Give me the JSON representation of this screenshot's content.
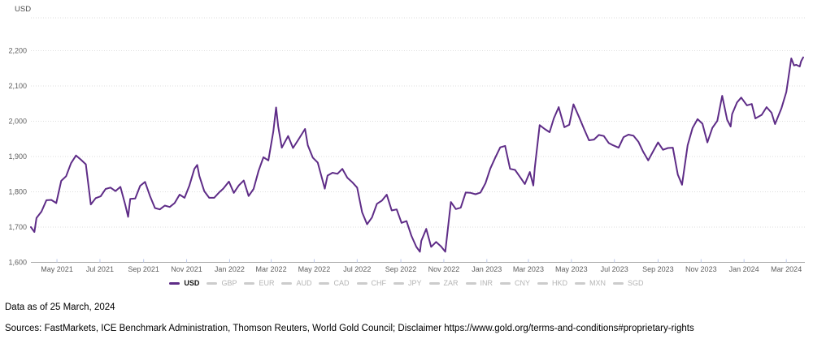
{
  "chart": {
    "axis_title": "USD"
  },
  "footer": {
    "data_as_of": "Data as of 25 March, 2024",
    "sources": "Sources: FastMarkets, ICE Benchmark Administration, Thomson Reuters, World Gold Council; Disclaimer https://www.gold.org/terms-and-conditions#proprietary-rights"
  },
  "colors": {
    "line": "#5e2c87",
    "grid": "#dedede",
    "axis_line": "#ababab",
    "tick_mark": "#bcc8ea",
    "tick_label": "#5e5e5e",
    "legend_active_dash": "#5e2c87",
    "legend_inactive_dash": "#cccccc",
    "legend_active_text": "#111111",
    "legend_inactive_text": "#b4b4b4",
    "footer_text": "#000000"
  },
  "legend": {
    "items": [
      {
        "label": "USD",
        "active": true
      },
      {
        "label": "GBP",
        "active": false
      },
      {
        "label": "EUR",
        "active": false
      },
      {
        "label": "AUD",
        "active": false
      },
      {
        "label": "CAD",
        "active": false
      },
      {
        "label": "CHF",
        "active": false
      },
      {
        "label": "JPY",
        "active": false
      },
      {
        "label": "ZAR",
        "active": false
      },
      {
        "label": "INR",
        "active": false
      },
      {
        "label": "CNY",
        "active": false
      },
      {
        "label": "HKD",
        "active": false
      },
      {
        "label": "MXN",
        "active": false
      },
      {
        "label": "SGD",
        "active": false
      }
    ]
  },
  "chart_data": {
    "type": "line",
    "ylabel": "USD",
    "grid": true,
    "legend_position": "bottom",
    "x_range": [
      "2021-03-25",
      "2024-03-25"
    ],
    "ylim": [
      1600,
      2293
    ],
    "y_ticks": [
      {
        "value": 1600,
        "label": "1,600"
      },
      {
        "value": 1700,
        "label": "1,700"
      },
      {
        "value": 1800,
        "label": "1,800"
      },
      {
        "value": 1900,
        "label": "1,900"
      },
      {
        "value": 2000,
        "label": "2,000"
      },
      {
        "value": 2100,
        "label": "2,100"
      },
      {
        "value": 2200,
        "label": "2,200"
      }
    ],
    "x_ticks": [
      {
        "date": "2021-05-01",
        "label": "May 2021"
      },
      {
        "date": "2021-07-01",
        "label": "Jul 2021"
      },
      {
        "date": "2021-09-01",
        "label": "Sep 2021"
      },
      {
        "date": "2021-11-01",
        "label": "Nov 2021"
      },
      {
        "date": "2022-01-01",
        "label": "Jan 2022"
      },
      {
        "date": "2022-03-01",
        "label": "Mar 2022"
      },
      {
        "date": "2022-05-01",
        "label": "May 2022"
      },
      {
        "date": "2022-07-01",
        "label": "Jul 2022"
      },
      {
        "date": "2022-09-01",
        "label": "Sep 2022"
      },
      {
        "date": "2022-11-01",
        "label": "Nov 2022"
      },
      {
        "date": "2023-01-01",
        "label": "Jan 2023"
      },
      {
        "date": "2023-03-01",
        "label": "Mar 2023"
      },
      {
        "date": "2023-05-01",
        "label": "May 2023"
      },
      {
        "date": "2023-07-01",
        "label": "Jul 2023"
      },
      {
        "date": "2023-09-01",
        "label": "Sep 2023"
      },
      {
        "date": "2023-11-01",
        "label": "Nov 2023"
      },
      {
        "date": "2024-01-01",
        "label": "Jan 2024"
      },
      {
        "date": "2024-03-01",
        "label": "Mar 2024"
      }
    ],
    "series": [
      {
        "name": "USD",
        "color": "#5e2c87",
        "points": [
          [
            "2021-03-25",
            1700
          ],
          [
            "2021-03-30",
            1686
          ],
          [
            "2021-04-02",
            1726
          ],
          [
            "2021-04-09",
            1744
          ],
          [
            "2021-04-16",
            1776
          ],
          [
            "2021-04-23",
            1777
          ],
          [
            "2021-04-30",
            1768
          ],
          [
            "2021-05-07",
            1831
          ],
          [
            "2021-05-14",
            1844
          ],
          [
            "2021-05-21",
            1881
          ],
          [
            "2021-05-28",
            1903
          ],
          [
            "2021-06-04",
            1891
          ],
          [
            "2021-06-11",
            1878
          ],
          [
            "2021-06-18",
            1764
          ],
          [
            "2021-06-25",
            1782
          ],
          [
            "2021-07-02",
            1787
          ],
          [
            "2021-07-09",
            1808
          ],
          [
            "2021-07-16",
            1812
          ],
          [
            "2021-07-23",
            1802
          ],
          [
            "2021-07-30",
            1814
          ],
          [
            "2021-08-06",
            1763
          ],
          [
            "2021-08-10",
            1729
          ],
          [
            "2021-08-13",
            1780
          ],
          [
            "2021-08-20",
            1781
          ],
          [
            "2021-08-27",
            1817
          ],
          [
            "2021-09-03",
            1828
          ],
          [
            "2021-09-10",
            1788
          ],
          [
            "2021-09-17",
            1754
          ],
          [
            "2021-09-24",
            1750
          ],
          [
            "2021-10-01",
            1761
          ],
          [
            "2021-10-08",
            1757
          ],
          [
            "2021-10-15",
            1768
          ],
          [
            "2021-10-22",
            1792
          ],
          [
            "2021-10-29",
            1783
          ],
          [
            "2021-11-05",
            1818
          ],
          [
            "2021-11-12",
            1865
          ],
          [
            "2021-11-16",
            1876
          ],
          [
            "2021-11-19",
            1845
          ],
          [
            "2021-11-26",
            1802
          ],
          [
            "2021-12-03",
            1783
          ],
          [
            "2021-12-10",
            1783
          ],
          [
            "2021-12-17",
            1798
          ],
          [
            "2021-12-23",
            1809
          ],
          [
            "2021-12-31",
            1829
          ],
          [
            "2022-01-07",
            1797
          ],
          [
            "2022-01-14",
            1818
          ],
          [
            "2022-01-21",
            1832
          ],
          [
            "2022-01-28",
            1788
          ],
          [
            "2022-02-04",
            1808
          ],
          [
            "2022-02-11",
            1859
          ],
          [
            "2022-02-18",
            1898
          ],
          [
            "2022-02-25",
            1889
          ],
          [
            "2022-03-04",
            1971
          ],
          [
            "2022-03-08",
            2039
          ],
          [
            "2022-03-11",
            1985
          ],
          [
            "2022-03-16",
            1925
          ],
          [
            "2022-03-25",
            1958
          ],
          [
            "2022-04-01",
            1924
          ],
          [
            "2022-04-08",
            1946
          ],
          [
            "2022-04-18",
            1978
          ],
          [
            "2022-04-22",
            1932
          ],
          [
            "2022-04-29",
            1897
          ],
          [
            "2022-05-06",
            1883
          ],
          [
            "2022-05-16",
            1809
          ],
          [
            "2022-05-20",
            1846
          ],
          [
            "2022-05-27",
            1854
          ],
          [
            "2022-06-03",
            1851
          ],
          [
            "2022-06-10",
            1865
          ],
          [
            "2022-06-17",
            1840
          ],
          [
            "2022-06-24",
            1827
          ],
          [
            "2022-07-01",
            1812
          ],
          [
            "2022-07-08",
            1742
          ],
          [
            "2022-07-15",
            1708
          ],
          [
            "2022-07-22",
            1727
          ],
          [
            "2022-07-29",
            1766
          ],
          [
            "2022-08-05",
            1775
          ],
          [
            "2022-08-12",
            1792
          ],
          [
            "2022-08-19",
            1747
          ],
          [
            "2022-08-26",
            1750
          ],
          [
            "2022-09-02",
            1712
          ],
          [
            "2022-09-09",
            1717
          ],
          [
            "2022-09-16",
            1675
          ],
          [
            "2022-09-23",
            1644
          ],
          [
            "2022-09-28",
            1630
          ],
          [
            "2022-09-30",
            1661
          ],
          [
            "2022-10-07",
            1695
          ],
          [
            "2022-10-14",
            1644
          ],
          [
            "2022-10-21",
            1658
          ],
          [
            "2022-10-28",
            1645
          ],
          [
            "2022-11-03",
            1630
          ],
          [
            "2022-11-11",
            1771
          ],
          [
            "2022-11-18",
            1751
          ],
          [
            "2022-11-25",
            1755
          ],
          [
            "2022-12-02",
            1798
          ],
          [
            "2022-12-09",
            1797
          ],
          [
            "2022-12-16",
            1793
          ],
          [
            "2022-12-23",
            1798
          ],
          [
            "2022-12-30",
            1824
          ],
          [
            "2023-01-06",
            1866
          ],
          [
            "2023-01-13",
            1897
          ],
          [
            "2023-01-20",
            1926
          ],
          [
            "2023-01-27",
            1930
          ],
          [
            "2023-02-03",
            1865
          ],
          [
            "2023-02-10",
            1862
          ],
          [
            "2023-02-17",
            1842
          ],
          [
            "2023-02-24",
            1822
          ],
          [
            "2023-03-03",
            1856
          ],
          [
            "2023-03-08",
            1818
          ],
          [
            "2023-03-10",
            1868
          ],
          [
            "2023-03-17",
            1989
          ],
          [
            "2023-03-24",
            1978
          ],
          [
            "2023-03-31",
            1969
          ],
          [
            "2023-04-06",
            2008
          ],
          [
            "2023-04-13",
            2040
          ],
          [
            "2023-04-21",
            1983
          ],
          [
            "2023-04-28",
            1990
          ],
          [
            "2023-05-04",
            2048
          ],
          [
            "2023-05-12",
            2011
          ],
          [
            "2023-05-19",
            1978
          ],
          [
            "2023-05-26",
            1946
          ],
          [
            "2023-06-02",
            1948
          ],
          [
            "2023-06-09",
            1961
          ],
          [
            "2023-06-16",
            1958
          ],
          [
            "2023-06-23",
            1938
          ],
          [
            "2023-06-29",
            1932
          ],
          [
            "2023-07-07",
            1925
          ],
          [
            "2023-07-14",
            1955
          ],
          [
            "2023-07-21",
            1962
          ],
          [
            "2023-07-28",
            1959
          ],
          [
            "2023-08-04",
            1942
          ],
          [
            "2023-08-11",
            1913
          ],
          [
            "2023-08-18",
            1889
          ],
          [
            "2023-08-25",
            1915
          ],
          [
            "2023-09-01",
            1940
          ],
          [
            "2023-09-08",
            1919
          ],
          [
            "2023-09-15",
            1924
          ],
          [
            "2023-09-22",
            1925
          ],
          [
            "2023-09-29",
            1849
          ],
          [
            "2023-10-05",
            1820
          ],
          [
            "2023-10-13",
            1932
          ],
          [
            "2023-10-20",
            1981
          ],
          [
            "2023-10-27",
            2006
          ],
          [
            "2023-11-03",
            1993
          ],
          [
            "2023-11-10",
            1940
          ],
          [
            "2023-11-17",
            1981
          ],
          [
            "2023-11-24",
            2001
          ],
          [
            "2023-12-01",
            2072
          ],
          [
            "2023-12-08",
            2004
          ],
          [
            "2023-12-13",
            1985
          ],
          [
            "2023-12-15",
            2020
          ],
          [
            "2023-12-22",
            2053
          ],
          [
            "2023-12-28",
            2067
          ],
          [
            "2024-01-05",
            2045
          ],
          [
            "2024-01-12",
            2049
          ],
          [
            "2024-01-17",
            2008
          ],
          [
            "2024-01-26",
            2018
          ],
          [
            "2024-02-02",
            2040
          ],
          [
            "2024-02-09",
            2024
          ],
          [
            "2024-02-14",
            1992
          ],
          [
            "2024-02-23",
            2036
          ],
          [
            "2024-03-01",
            2083
          ],
          [
            "2024-03-08",
            2178
          ],
          [
            "2024-03-12",
            2158
          ],
          [
            "2024-03-15",
            2160
          ],
          [
            "2024-03-20",
            2155
          ],
          [
            "2024-03-22",
            2170
          ],
          [
            "2024-03-25",
            2181
          ]
        ]
      }
    ]
  }
}
